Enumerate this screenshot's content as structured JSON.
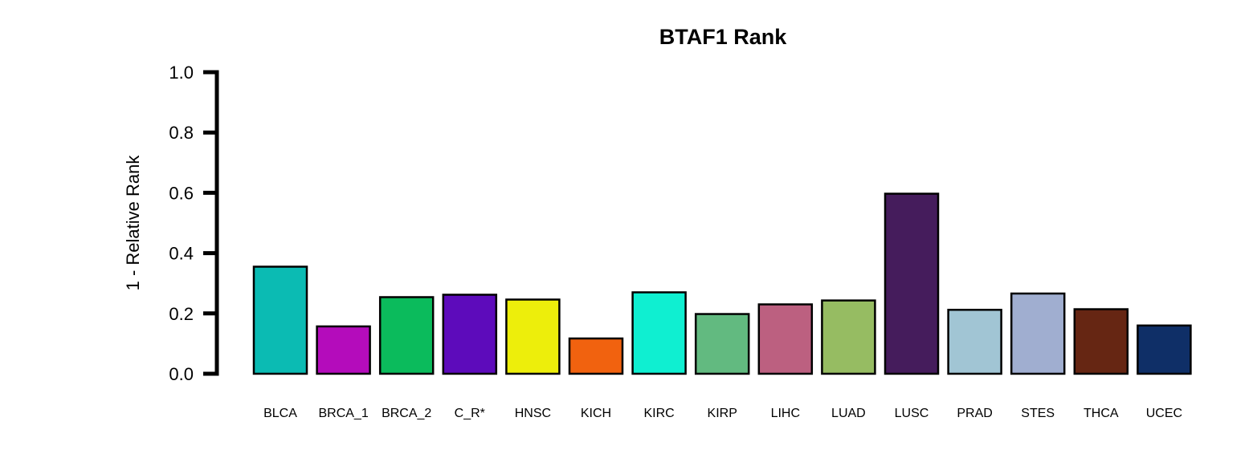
{
  "chart_data": {
    "type": "bar",
    "title": "BTAF1 Rank",
    "xlabel": "",
    "ylabel": "1 - Relative Rank",
    "ylim": [
      0,
      1
    ],
    "yticks": [
      "0.0",
      "0.2",
      "0.4",
      "0.6",
      "0.8",
      "1.0"
    ],
    "categories": [
      "BLCA",
      "BRCA_1",
      "BRCA_2",
      "C_R*",
      "HNSC",
      "KICH",
      "KIRC",
      "KIRP",
      "LIHC",
      "LUAD",
      "LUSC",
      "PRAD",
      "STES",
      "THCA",
      "UCEC"
    ],
    "values": [
      0.355,
      0.157,
      0.254,
      0.262,
      0.246,
      0.117,
      0.27,
      0.198,
      0.23,
      0.243,
      0.597,
      0.212,
      0.266,
      0.214,
      0.16
    ],
    "colors": [
      "#0BBBB3",
      "#B40CBB",
      "#0BBB5C",
      "#5D0BBB",
      "#EDEE0B",
      "#F1620F",
      "#0FEFD1",
      "#62BA80",
      "#BC6080",
      "#96BC62",
      "#451C5C",
      "#A1C5D4",
      "#A0AED0",
      "#662613",
      "#0F2F67"
    ],
    "grid": false,
    "legend": "none"
  }
}
